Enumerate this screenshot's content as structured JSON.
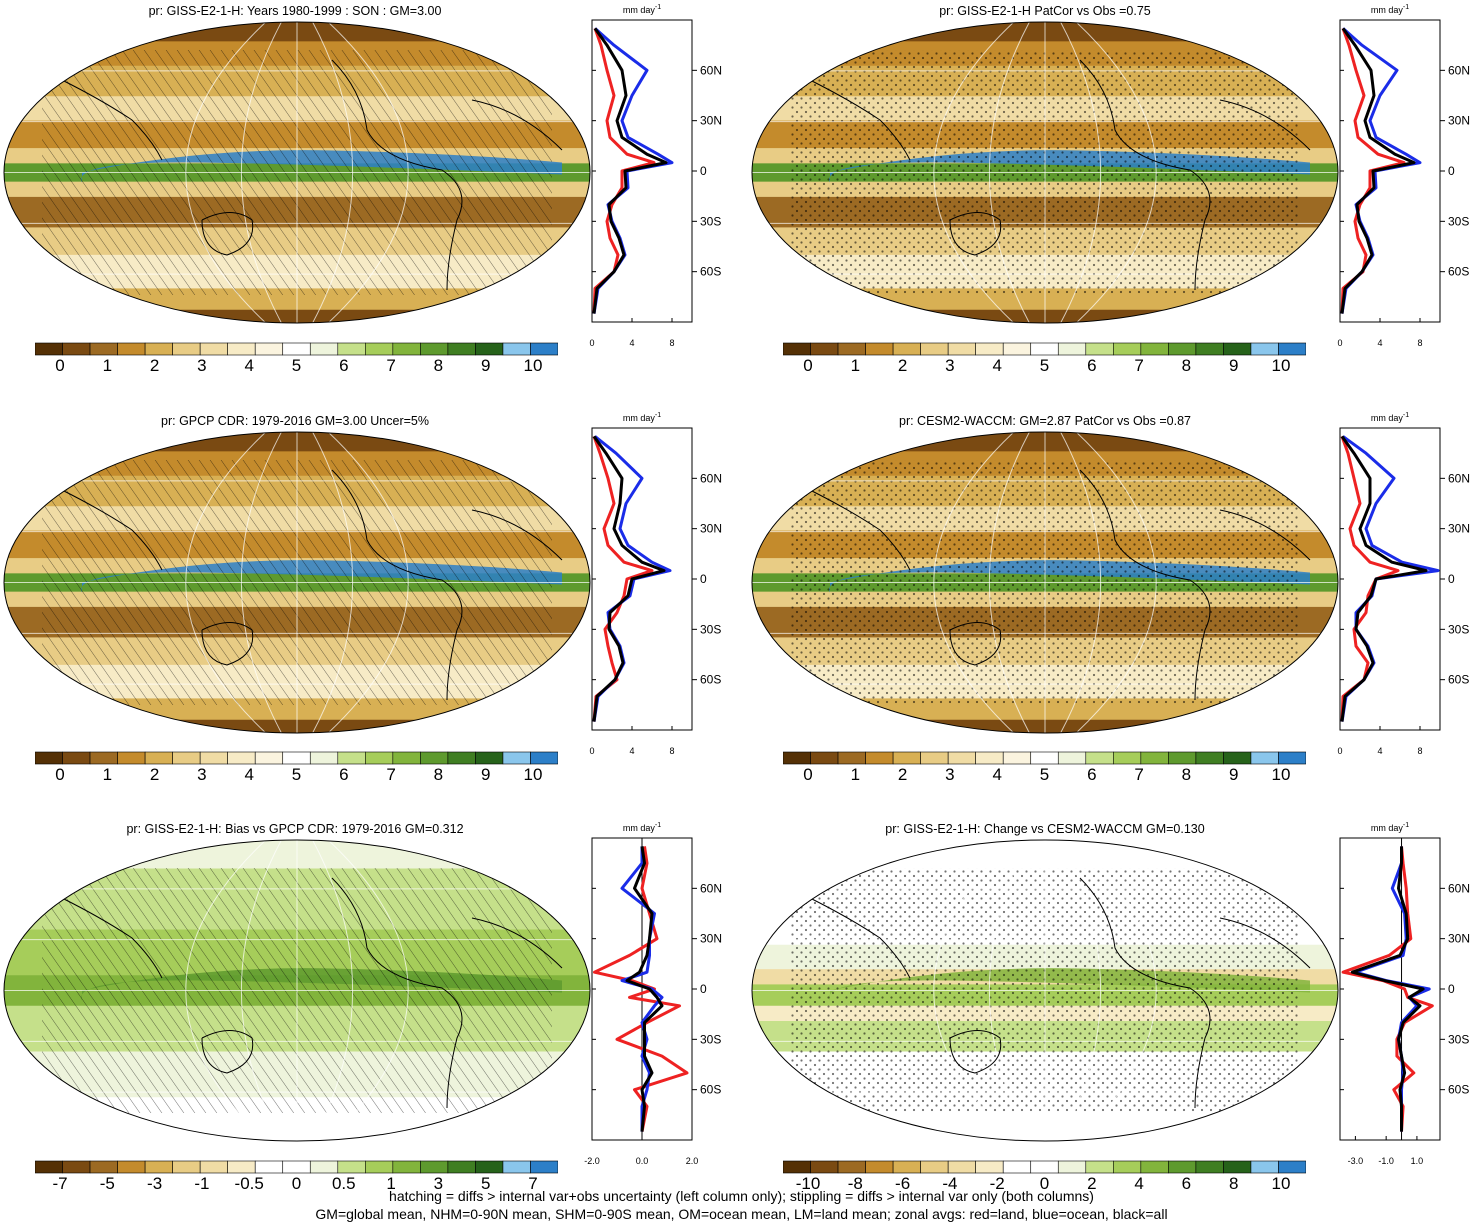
{
  "panels": [
    {
      "id": "p1",
      "title": "pr: GISS-E2-1-H: Years 1980-1999 : SON : GM=3.00",
      "style": "clim",
      "marks": "hatch",
      "zonal_ticks": [
        "0",
        "4",
        "8"
      ],
      "zonal_range": [
        0,
        10
      ],
      "colorbar_labels": [
        "0",
        "1",
        "2",
        "3",
        "4",
        "5",
        "6",
        "7",
        "8",
        "9",
        "10"
      ]
    },
    {
      "id": "p2",
      "title": "pr: GISS-E2-1-H PatCor vs Obs =0.75",
      "style": "clim",
      "marks": "stipple",
      "zonal_ticks": [
        "0",
        "4",
        "8"
      ],
      "zonal_range": [
        0,
        10
      ],
      "colorbar_labels": [
        "0",
        "1",
        "2",
        "3",
        "4",
        "5",
        "6",
        "7",
        "8",
        "9",
        "10"
      ]
    },
    {
      "id": "p3",
      "title": "pr: GPCP CDR: 1979-2016 GM=3.00 Uncer=5%",
      "style": "clim",
      "marks": "hatch",
      "zonal_ticks": [
        "0",
        "4",
        "8"
      ],
      "zonal_range": [
        0,
        10
      ],
      "colorbar_labels": [
        "0",
        "1",
        "2",
        "3",
        "4",
        "5",
        "6",
        "7",
        "8",
        "9",
        "10"
      ]
    },
    {
      "id": "p4",
      "title": "pr: CESM2-WACCM: GM=2.87 PatCor vs Obs =0.87",
      "style": "clim",
      "marks": "stipple",
      "zonal_ticks": [
        "0",
        "4",
        "8"
      ],
      "zonal_range": [
        0,
        10
      ],
      "colorbar_labels": [
        "0",
        "1",
        "2",
        "3",
        "4",
        "5",
        "6",
        "7",
        "8",
        "9",
        "10"
      ]
    },
    {
      "id": "p5",
      "title": "pr: GISS-E2-1-H: Bias vs GPCP CDR: 1979-2016  GM=0.312",
      "style": "bias",
      "marks": "hatch",
      "zonal_ticks": [
        "-2.0",
        "0.0",
        "2.0"
      ],
      "zonal_range": [
        -2,
        2
      ],
      "colorbar_labels": [
        "-7",
        "-5",
        "-3",
        "-1",
        "-0.5",
        "0",
        "0.5",
        "1",
        "3",
        "5",
        "7"
      ]
    },
    {
      "id": "p6",
      "title": "pr: GISS-E2-1-H: Change vs CESM2-WACCM GM=0.130",
      "style": "change",
      "marks": "stipple",
      "zonal_ticks": [
        "-3.0",
        "-1.0",
        "1.0"
      ],
      "zonal_range": [
        -4,
        2.5
      ],
      "colorbar_labels": [
        "-10",
        "-8",
        "-6",
        "-4",
        "-2",
        "0",
        "2",
        "4",
        "6",
        "8",
        "10"
      ]
    }
  ],
  "zonal_unit": "mm day",
  "zonal_unit_exp": "-1",
  "lat_labels": [
    "60N",
    "30N",
    "0",
    "30S",
    "60S"
  ],
  "legend_colors": {
    "land": "#ee2222",
    "ocean": "#1a2ce8",
    "all": "#000000"
  },
  "footnote_line1": "hatching = diffs > internal var+obs uncertainty (left column only); stippling = diffs > internal var only (both columns)",
  "footnote_line2": "GM=global mean, NHM=0-90N mean, SHM=0-90S mean, OM=ocean mean, LM=land mean; zonal avgs: red=land, blue=ocean, black=all",
  "chart_data": [
    {
      "type": "line",
      "panel": "p1",
      "title": "pr: GISS-E2-1-H: Years 1980-1999 : SON : GM=3.00",
      "ylabel": "",
      "xlabel": "mm day-1",
      "xlim": [
        0,
        10
      ],
      "ylim": [
        -90,
        90
      ],
      "lat": [
        -85,
        -70,
        -60,
        -50,
        -40,
        -30,
        -20,
        -10,
        0,
        5,
        10,
        20,
        30,
        45,
        60,
        75,
        85
      ],
      "series": [
        {
          "name": "land",
          "values": [
            0.2,
            0.3,
            2.2,
            2.6,
            1.8,
            1.5,
            2.0,
            3.0,
            3.0,
            6.2,
            3.5,
            1.8,
            1.5,
            2.2,
            1.5,
            0.9,
            0.3
          ]
        },
        {
          "name": "ocean",
          "values": [
            0.2,
            0.6,
            2.2,
            3.3,
            2.8,
            2.0,
            1.6,
            3.6,
            3.5,
            8.0,
            6.6,
            3.6,
            3.0,
            4.0,
            5.5,
            2.2,
            0.3
          ]
        },
        {
          "name": "all",
          "values": [
            0.2,
            0.5,
            2.2,
            3.2,
            2.7,
            1.9,
            1.7,
            3.4,
            3.3,
            7.4,
            5.5,
            3.0,
            2.5,
            3.4,
            3.0,
            1.5,
            0.3
          ]
        }
      ]
    },
    {
      "type": "line",
      "panel": "p2",
      "title": "pr: GISS-E2-1-H PatCor vs Obs =0.75",
      "ylabel": "",
      "xlabel": "mm day-1",
      "xlim": [
        0,
        10
      ],
      "ylim": [
        -90,
        90
      ],
      "lat": [
        -85,
        -70,
        -60,
        -50,
        -40,
        -30,
        -20,
        -10,
        0,
        5,
        10,
        20,
        30,
        45,
        60,
        75,
        85
      ],
      "series": [
        {
          "name": "land",
          "values": [
            0.2,
            0.3,
            2.3,
            2.6,
            1.8,
            1.5,
            2.0,
            3.0,
            3.0,
            6.4,
            3.8,
            1.8,
            1.5,
            2.4,
            1.6,
            0.9,
            0.3
          ]
        },
        {
          "name": "ocean",
          "values": [
            0.2,
            0.6,
            2.2,
            3.3,
            2.8,
            2.0,
            1.6,
            3.6,
            3.5,
            8.0,
            6.6,
            3.6,
            3.0,
            4.0,
            5.7,
            2.2,
            0.3
          ]
        },
        {
          "name": "all",
          "values": [
            0.2,
            0.5,
            2.2,
            3.2,
            2.7,
            1.9,
            1.7,
            3.4,
            3.3,
            7.4,
            5.5,
            3.0,
            2.5,
            3.4,
            3.1,
            1.5,
            0.3
          ]
        }
      ]
    },
    {
      "type": "line",
      "panel": "p3",
      "title": "pr: GPCP CDR: 1979-2016 GM=3.00 Uncer=5%",
      "ylabel": "",
      "xlabel": "mm day-1",
      "xlim": [
        0,
        10
      ],
      "ylim": [
        -90,
        90
      ],
      "lat": [
        -85,
        -70,
        -60,
        -50,
        -40,
        -30,
        -20,
        -10,
        0,
        5,
        10,
        20,
        30,
        45,
        60,
        75,
        85
      ],
      "series": [
        {
          "name": "land",
          "values": [
            0.2,
            0.4,
            2.5,
            2.0,
            1.6,
            1.3,
            2.5,
            3.2,
            3.5,
            6.0,
            3.2,
            1.6,
            1.2,
            2.2,
            1.6,
            0.8,
            0.2
          ]
        },
        {
          "name": "ocean",
          "values": [
            0.2,
            0.6,
            2.3,
            3.2,
            2.8,
            1.8,
            1.6,
            3.8,
            4.2,
            7.8,
            6.0,
            3.6,
            2.8,
            3.4,
            5.0,
            2.4,
            0.3
          ]
        },
        {
          "name": "all",
          "values": [
            0.2,
            0.5,
            2.3,
            3.1,
            2.7,
            1.7,
            1.8,
            3.6,
            4.0,
            7.2,
            5.0,
            3.0,
            2.2,
            2.8,
            3.0,
            1.4,
            0.2
          ]
        }
      ]
    },
    {
      "type": "line",
      "panel": "p4",
      "title": "pr: CESM2-WACCM: GM=2.87 PatCor vs Obs =0.87",
      "ylabel": "",
      "xlabel": "mm day-1",
      "xlim": [
        0,
        10
      ],
      "ylim": [
        -90,
        90
      ],
      "lat": [
        -85,
        -70,
        -60,
        -50,
        -40,
        -30,
        -20,
        -10,
        0,
        5,
        10,
        20,
        30,
        45,
        60,
        75,
        85
      ],
      "series": [
        {
          "name": "land",
          "values": [
            0.2,
            0.3,
            2.4,
            2.8,
            1.6,
            1.4,
            2.6,
            2.8,
            3.6,
            5.8,
            3.0,
            1.4,
            1.0,
            2.0,
            1.4,
            0.8,
            0.2
          ]
        },
        {
          "name": "ocean",
          "values": [
            0.2,
            0.6,
            2.4,
            3.4,
            2.8,
            1.6,
            1.6,
            3.2,
            3.6,
            9.8,
            6.2,
            3.2,
            2.6,
            3.6,
            5.4,
            2.6,
            0.3
          ]
        },
        {
          "name": "all",
          "values": [
            0.2,
            0.5,
            2.4,
            3.3,
            2.7,
            1.6,
            1.8,
            3.1,
            3.6,
            8.6,
            5.2,
            2.6,
            2.0,
            3.0,
            3.0,
            1.4,
            0.2
          ]
        }
      ]
    },
    {
      "type": "line",
      "panel": "p5",
      "title": "pr: GISS-E2-1-H: Bias vs GPCP CDR: 1979-2016  GM=0.312",
      "ylabel": "",
      "xlabel": "mm day-1",
      "xlim": [
        -2,
        2
      ],
      "ylim": [
        -90,
        90
      ],
      "lat": [
        -85,
        -70,
        -60,
        -50,
        -40,
        -30,
        -20,
        -10,
        -5,
        0,
        5,
        10,
        20,
        30,
        45,
        60,
        75,
        85
      ],
      "series": [
        {
          "name": "land",
          "values": [
            0.0,
            0.2,
            -0.3,
            1.8,
            0.8,
            -1.0,
            0.2,
            1.5,
            -0.5,
            0.5,
            -0.4,
            -1.9,
            -0.5,
            0.6,
            0.3,
            0.0,
            0.2,
            0.1
          ]
        },
        {
          "name": "ocean",
          "values": [
            0.0,
            0.0,
            0.2,
            0.3,
            0.0,
            0.2,
            0.0,
            0.5,
            0.8,
            0.4,
            -0.8,
            0.2,
            0.3,
            0.3,
            0.5,
            -0.8,
            0.0,
            0.0
          ]
        },
        {
          "name": "all",
          "values": [
            0.0,
            0.1,
            0.0,
            0.4,
            0.1,
            0.1,
            0.1,
            0.8,
            0.6,
            0.3,
            -0.6,
            -0.1,
            0.2,
            0.3,
            0.4,
            -0.3,
            0.1,
            0.0
          ]
        }
      ]
    },
    {
      "type": "line",
      "panel": "p6",
      "title": "pr: GISS-E2-1-H: Change vs CESM2-WACCM GM=0.130",
      "ylabel": "",
      "xlabel": "mm day-1",
      "xlim": [
        -4,
        2.5
      ],
      "ylim": [
        -90,
        90
      ],
      "lat": [
        -85,
        -70,
        -60,
        -50,
        -40,
        -30,
        -20,
        -10,
        -5,
        0,
        5,
        10,
        20,
        30,
        45,
        60,
        75,
        85
      ],
      "series": [
        {
          "name": "land",
          "values": [
            0.0,
            0.1,
            -0.5,
            0.8,
            -0.3,
            -0.3,
            0.2,
            2.0,
            0.4,
            0.2,
            -1.2,
            -3.8,
            -0.8,
            0.6,
            0.4,
            0.3,
            0.1,
            0.0
          ]
        },
        {
          "name": "ocean",
          "values": [
            0.0,
            0.0,
            0.0,
            0.1,
            0.0,
            -0.2,
            0.0,
            1.0,
            0.5,
            1.8,
            -1.0,
            -3.0,
            0.1,
            0.3,
            0.2,
            -0.6,
            0.0,
            0.0
          ]
        },
        {
          "name": "all",
          "values": [
            0.0,
            0.0,
            -0.1,
            0.2,
            0.0,
            -0.2,
            0.1,
            1.2,
            0.5,
            1.4,
            -1.1,
            -3.2,
            -0.1,
            0.4,
            0.3,
            -0.2,
            0.0,
            0.0
          ]
        }
      ]
    }
  ]
}
